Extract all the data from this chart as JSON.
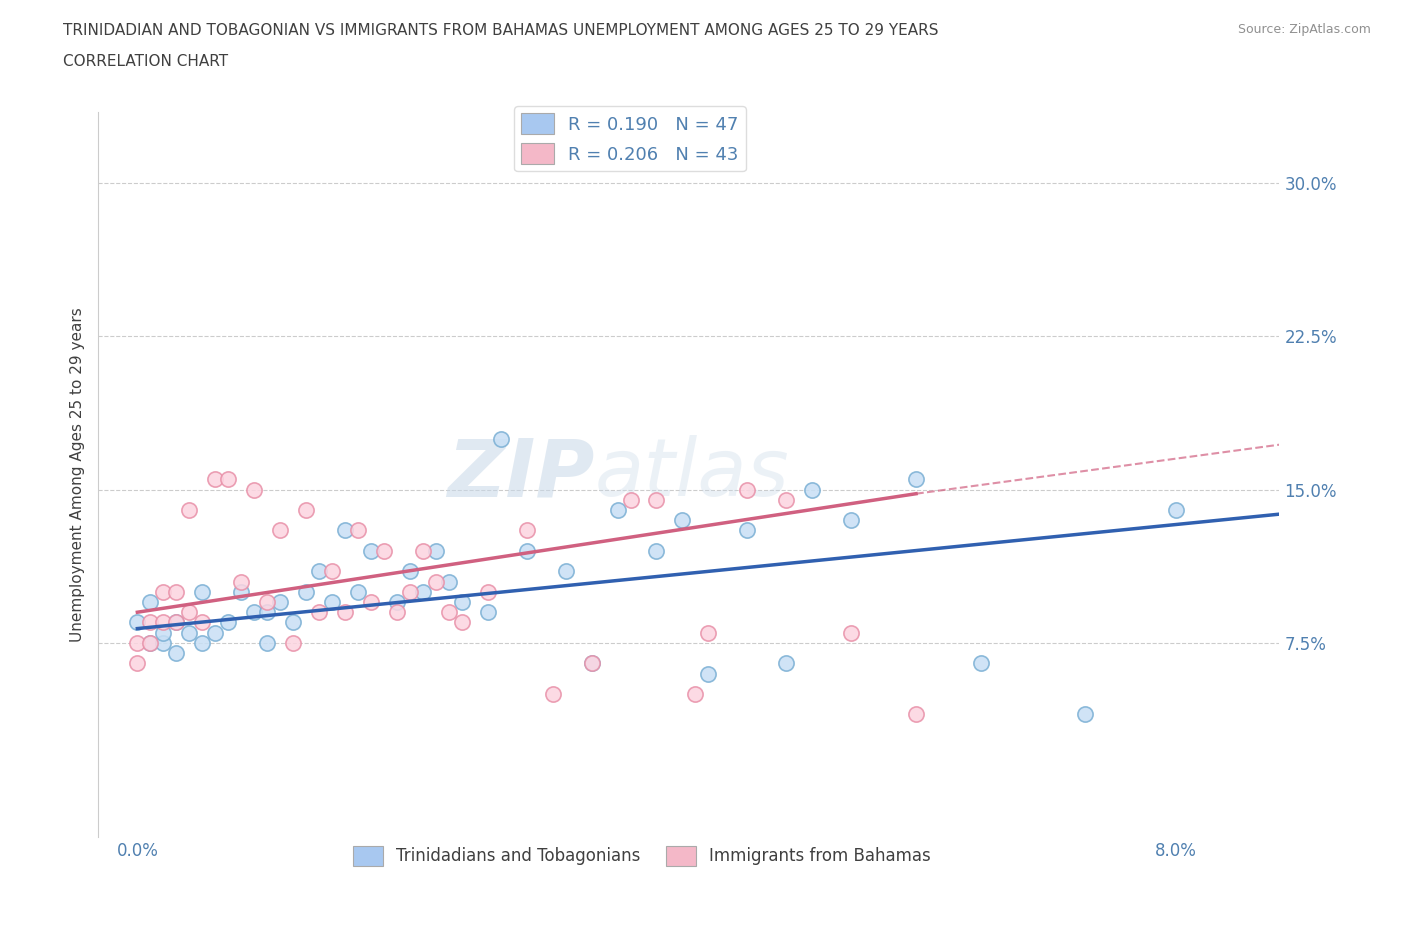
{
  "title_line1": "TRINIDADIAN AND TOBAGONIAN VS IMMIGRANTS FROM BAHAMAS UNEMPLOYMENT AMONG AGES 25 TO 29 YEARS",
  "title_line2": "CORRELATION CHART",
  "source": "Source: ZipAtlas.com",
  "ylabel": "Unemployment Among Ages 25 to 29 years",
  "watermark_part1": "ZIP",
  "watermark_part2": "atlas",
  "series1": {
    "label": "Trinidadians and Tobagonians",
    "R": 0.19,
    "N": 47,
    "patch_color": "#a8c8f0",
    "line_color": "#3060b0",
    "scatter_edge": "#7aafd4",
    "scatter_face": "#c8dff5"
  },
  "series2": {
    "label": "Immigrants from Bahamas",
    "R": 0.206,
    "N": 43,
    "patch_color": "#f4b8c8",
    "line_color": "#d06080",
    "scatter_edge": "#e890a8",
    "scatter_face": "#fcd4e0"
  },
  "xlim": [
    -0.003,
    0.088
  ],
  "ylim": [
    -0.02,
    0.335
  ],
  "x_tick_positions": [
    0.0,
    0.02,
    0.04,
    0.06,
    0.08
  ],
  "x_tick_labels": [
    "0.0%",
    "",
    "",
    "",
    "8.0%"
  ],
  "y_tick_positions": [
    0.0,
    0.075,
    0.15,
    0.225,
    0.3
  ],
  "y_tick_labels": [
    "",
    "7.5%",
    "15.0%",
    "22.5%",
    "30.0%"
  ],
  "background_color": "#ffffff",
  "grid_color": "#cccccc",
  "title_color": "#404040",
  "axis_label_color": "#5080b0",
  "series1_x": [
    0.0,
    0.001,
    0.001,
    0.002,
    0.002,
    0.003,
    0.003,
    0.004,
    0.005,
    0.005,
    0.006,
    0.007,
    0.008,
    0.009,
    0.01,
    0.01,
    0.011,
    0.012,
    0.013,
    0.014,
    0.015,
    0.016,
    0.017,
    0.018,
    0.02,
    0.021,
    0.022,
    0.023,
    0.024,
    0.025,
    0.027,
    0.028,
    0.03,
    0.033,
    0.035,
    0.037,
    0.04,
    0.042,
    0.044,
    0.047,
    0.05,
    0.052,
    0.055,
    0.06,
    0.065,
    0.073,
    0.08
  ],
  "series1_y": [
    0.085,
    0.075,
    0.095,
    0.075,
    0.08,
    0.07,
    0.085,
    0.08,
    0.1,
    0.075,
    0.08,
    0.085,
    0.1,
    0.09,
    0.075,
    0.09,
    0.095,
    0.085,
    0.1,
    0.11,
    0.095,
    0.13,
    0.1,
    0.12,
    0.095,
    0.11,
    0.1,
    0.12,
    0.105,
    0.095,
    0.09,
    0.175,
    0.12,
    0.11,
    0.065,
    0.14,
    0.12,
    0.135,
    0.06,
    0.13,
    0.065,
    0.15,
    0.135,
    0.155,
    0.065,
    0.04,
    0.14
  ],
  "series2_x": [
    0.0,
    0.0,
    0.001,
    0.001,
    0.002,
    0.002,
    0.003,
    0.003,
    0.004,
    0.004,
    0.005,
    0.006,
    0.007,
    0.008,
    0.009,
    0.01,
    0.011,
    0.012,
    0.013,
    0.014,
    0.015,
    0.016,
    0.017,
    0.018,
    0.019,
    0.02,
    0.021,
    0.022,
    0.023,
    0.024,
    0.025,
    0.027,
    0.03,
    0.032,
    0.035,
    0.038,
    0.04,
    0.043,
    0.044,
    0.047,
    0.05,
    0.055,
    0.06
  ],
  "series2_y": [
    0.075,
    0.065,
    0.075,
    0.085,
    0.085,
    0.1,
    0.085,
    0.1,
    0.09,
    0.14,
    0.085,
    0.155,
    0.155,
    0.105,
    0.15,
    0.095,
    0.13,
    0.075,
    0.14,
    0.09,
    0.11,
    0.09,
    0.13,
    0.095,
    0.12,
    0.09,
    0.1,
    0.12,
    0.105,
    0.09,
    0.085,
    0.1,
    0.13,
    0.05,
    0.065,
    0.145,
    0.145,
    0.05,
    0.08,
    0.15,
    0.145,
    0.08,
    0.04
  ],
  "line1_x0": 0.0,
  "line1_y0": 0.082,
  "line1_x1": 0.088,
  "line1_y1": 0.138,
  "line2_x0": 0.0,
  "line2_y0": 0.09,
  "line2_x1": 0.06,
  "line2_y1": 0.148,
  "line2_dash_x0": 0.06,
  "line2_dash_y0": 0.148,
  "line2_dash_x1": 0.088,
  "line2_dash_y1": 0.172
}
